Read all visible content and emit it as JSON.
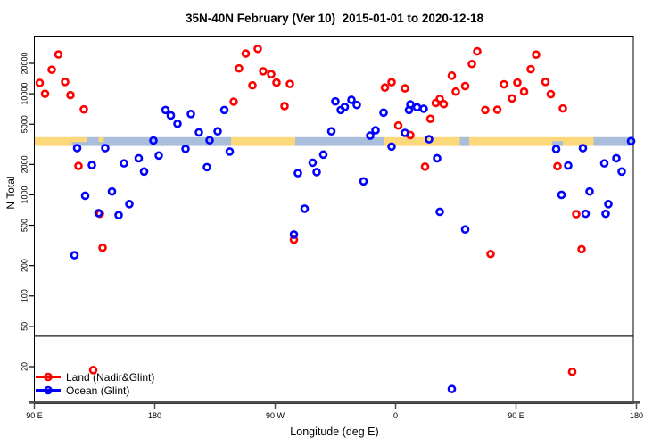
{
  "title": "35N-40N February (Ver 10)  2015-01-01 to 2020-12-18",
  "axes": {
    "x": {
      "label": "Longitude (deg E)",
      "scale": "linear",
      "range": [
        90,
        540
      ],
      "note": "longitude axis starts at 90E and wraps eastward around the globe (90..540 deg)",
      "ticks": [
        {
          "value": 90,
          "label": "90 E"
        },
        {
          "value": 180,
          "label": "180"
        },
        {
          "value": 270,
          "label": "90 W"
        },
        {
          "value": 360,
          "label": "0"
        },
        {
          "value": 450,
          "label": "90 E"
        },
        {
          "value": 540,
          "label": "180"
        }
      ]
    },
    "y": {
      "label": "N Total",
      "scale": "log10",
      "range": [
        10,
        37000
      ],
      "ticks": [
        20,
        50,
        100,
        200,
        500,
        1000,
        2000,
        5000,
        10000,
        20000
      ]
    }
  },
  "legend": [
    {
      "name": "Land (Nadir&Glint)",
      "color": "#ff0000"
    },
    {
      "name": "Ocean (Glint)",
      "color": "#0000ff"
    }
  ],
  "colors": {
    "land": "#ff0000",
    "ocean": "#0000ff",
    "band_yellow": "#fcd87a",
    "band_blue": "#a9bedb",
    "axis_gray": "#4f4f4f",
    "box_black": "#000000"
  },
  "chart_data": {
    "type": "scatter",
    "title": "35N-40N February (Ver 10)  2015-01-01 to 2020-12-18",
    "xlabel": "Longitude (deg E)",
    "ylabel": "N Total",
    "xlim": [
      90,
      540
    ],
    "ylim_log": [
      10,
      37000
    ],
    "threshold_line_n": 40,
    "band": {
      "n_range": [
        3050,
        3700
      ],
      "segments": [
        {
          "lon_from": 90,
          "lon_to": 118,
          "color": "yellow"
        },
        {
          "lon_from": 118,
          "lon_to": 237,
          "color": "blue"
        },
        {
          "lon_from": 237,
          "lon_to": 285,
          "color": "yellow"
        },
        {
          "lon_from": 285,
          "lon_to": 351,
          "color": "blue"
        },
        {
          "lon_from": 351,
          "lon_to": 508,
          "color": "yellow"
        },
        {
          "lon_from": 508,
          "lon_to": 537.5,
          "color": "blue"
        }
      ],
      "patches": [
        {
          "lon_from": 118,
          "lon_to": 129,
          "color": "yellow",
          "part": "top"
        },
        {
          "lon_from": 138,
          "lon_to": 142,
          "color": "yellow",
          "part": "top"
        },
        {
          "lon_from": 408,
          "lon_to": 415,
          "color": "blue",
          "part": "full"
        },
        {
          "lon_from": 477,
          "lon_to": 485,
          "color": "blue",
          "part": "bottom"
        }
      ]
    },
    "series": [
      {
        "name": "Land (Nadir&Glint)",
        "color": "#ff0000",
        "points": [
          [
            108,
            24500
          ],
          [
            103,
            17300
          ],
          [
            94,
            12800
          ],
          [
            113,
            13100
          ],
          [
            98,
            10000
          ],
          [
            117,
            9700
          ],
          [
            127,
            7000
          ],
          [
            123,
            1930
          ],
          [
            139,
            650
          ],
          [
            141,
            300
          ],
          [
            134,
            18.5
          ],
          [
            248,
            25000
          ],
          [
            257,
            27800
          ],
          [
            243,
            17800
          ],
          [
            261,
            16700
          ],
          [
            267,
            15600
          ],
          [
            271,
            12900
          ],
          [
            281,
            12500
          ],
          [
            253,
            12100
          ],
          [
            239,
            8350
          ],
          [
            277,
            7550
          ],
          [
            284,
            360
          ],
          [
            421,
            26300
          ],
          [
            417,
            19700
          ],
          [
            402,
            15100
          ],
          [
            412,
            11900
          ],
          [
            405,
            10500
          ],
          [
            357,
            13000
          ],
          [
            352,
            11500
          ],
          [
            367,
            11300
          ],
          [
            393,
            8900
          ],
          [
            390,
            8100
          ],
          [
            396,
            7900
          ],
          [
            427,
            6900
          ],
          [
            386,
            5650
          ],
          [
            362,
            4850
          ],
          [
            371,
            3900
          ],
          [
            382,
            1900
          ],
          [
            431,
            260
          ],
          [
            465,
            24400
          ],
          [
            461,
            17500
          ],
          [
            472,
            13100
          ],
          [
            441,
            12400
          ],
          [
            451,
            12900
          ],
          [
            456,
            10500
          ],
          [
            447,
            9000
          ],
          [
            476,
            9900
          ],
          [
            436,
            6950
          ],
          [
            485,
            7150
          ],
          [
            481,
            1920
          ],
          [
            499,
            290
          ],
          [
            495,
            645
          ],
          [
            492,
            17.8
          ]
        ]
      },
      {
        "name": "Ocean (Glint)",
        "color": "#0000ff",
        "points": [
          [
            188,
            6900
          ],
          [
            192,
            6100
          ],
          [
            197,
            5050
          ],
          [
            179,
            3450
          ],
          [
            122,
            2900
          ],
          [
            143,
            2900
          ],
          [
            203,
            2850
          ],
          [
            168,
            2300
          ],
          [
            183,
            2450
          ],
          [
            157,
            2050
          ],
          [
            133,
            1970
          ],
          [
            172,
            1700
          ],
          [
            128,
            980
          ],
          [
            148,
            1080
          ],
          [
            161,
            810
          ],
          [
            138,
            660
          ],
          [
            153,
            630
          ],
          [
            120,
            253
          ],
          [
            232,
            6900
          ],
          [
            207,
            6300
          ],
          [
            213,
            4150
          ],
          [
            227,
            4250
          ],
          [
            221,
            3470
          ],
          [
            236,
            2680
          ],
          [
            219,
            1880
          ],
          [
            312,
            4250
          ],
          [
            306,
            2500
          ],
          [
            298,
            2080
          ],
          [
            301,
            1680
          ],
          [
            287,
            1640
          ],
          [
            292,
            730
          ],
          [
            284,
            405
          ],
          [
            315,
            8400
          ],
          [
            319,
            6900
          ],
          [
            327,
            8700
          ],
          [
            331,
            7750
          ],
          [
            322,
            7400
          ],
          [
            351,
            6500
          ],
          [
            371,
            7850
          ],
          [
            370,
            6900
          ],
          [
            376,
            7350
          ],
          [
            381,
            7100
          ],
          [
            345,
            4350
          ],
          [
            341,
            3850
          ],
          [
            367,
            4100
          ],
          [
            357,
            3000
          ],
          [
            385,
            3550
          ],
          [
            391,
            2300
          ],
          [
            336,
            1360
          ],
          [
            393,
            680
          ],
          [
            412,
            455
          ],
          [
            402,
            12
          ],
          [
            536,
            3400
          ],
          [
            480,
            2840
          ],
          [
            500,
            2900
          ],
          [
            489,
            1950
          ],
          [
            516,
            2050
          ],
          [
            525,
            2300
          ],
          [
            529,
            1700
          ],
          [
            484,
            1000
          ],
          [
            505,
            1080
          ],
          [
            519,
            810
          ],
          [
            502,
            650
          ],
          [
            517,
            650
          ]
        ]
      }
    ]
  }
}
